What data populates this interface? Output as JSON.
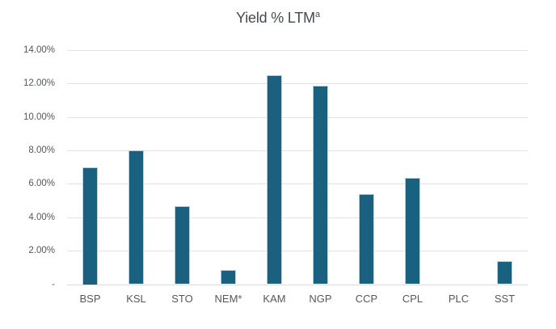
{
  "chart_data": {
    "type": "bar",
    "title": "Yield % LTM",
    "title_superscript": "a",
    "categories": [
      "BSP",
      "KSL",
      "STO",
      "NEM*",
      "KAM",
      "NGP",
      "CCP",
      "CPL",
      "PLC",
      "SST"
    ],
    "values": [
      7.0,
      8.0,
      4.65,
      0.85,
      12.5,
      11.85,
      5.4,
      6.35,
      0.0,
      1.4
    ],
    "unit": "%",
    "xlabel": "",
    "ylabel": "",
    "ylim": [
      0,
      14
    ],
    "ytick_values": [
      14,
      12,
      10,
      8,
      6,
      4,
      2,
      0
    ],
    "ytick_labels": [
      "14.00%",
      "12.00%",
      "10.00%",
      "8.00%",
      "6.00%",
      "4.00%",
      "2.00%",
      "-"
    ],
    "grid": true,
    "legend_position": "none",
    "bar_color": "#19617f",
    "gridline_color": "#e2e2e2",
    "axis_line_color": "#d9d9d9",
    "title_color": "#45494e",
    "tick_color": "#54585c"
  }
}
